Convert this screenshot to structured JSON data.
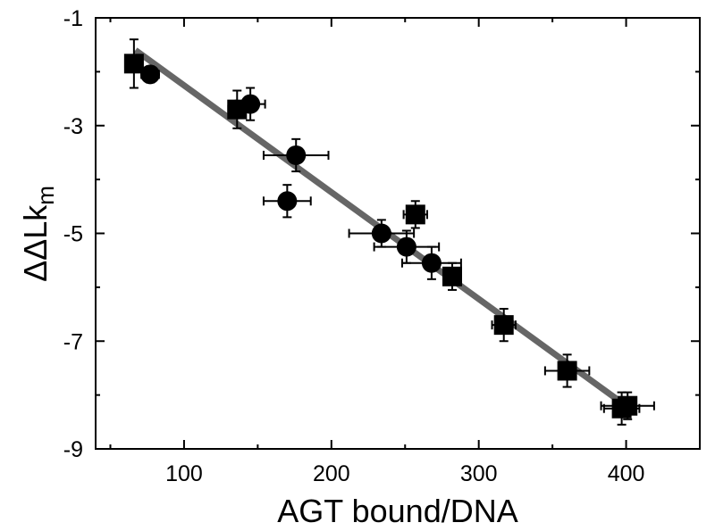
{
  "chart_data": {
    "type": "scatter",
    "title": "",
    "xlabel": "AGT bound/DNA",
    "ylabel_main": "ΔΔLk",
    "ylabel_sub": "m",
    "xlim": [
      40,
      450
    ],
    "ylim": [
      -9,
      -1
    ],
    "x_ticks": [
      100,
      200,
      300,
      400
    ],
    "x_tick_labels": [
      "100",
      "200",
      "300",
      "400"
    ],
    "y_ticks": [
      -1,
      -3,
      -5,
      -7,
      -9
    ],
    "y_tick_labels": [
      "-1",
      "-3",
      "-5",
      "-7",
      "-9"
    ],
    "grid": false,
    "legend": "none",
    "fit_line": {
      "color": "#666666",
      "points": [
        [
          67,
          -1.6
        ],
        [
          405,
          -8.3
        ]
      ]
    },
    "series": [
      {
        "marker": "circle",
        "color": "#000000",
        "points": [
          {
            "x": 77,
            "y": -2.05,
            "xerr": 6,
            "yerr": 0.15
          },
          {
            "x": 145,
            "y": -2.6,
            "xerr": 10,
            "yerr": 0.3
          },
          {
            "x": 176,
            "y": -3.55,
            "xerr": 22,
            "yerr": 0.3
          },
          {
            "x": 170,
            "y": -4.4,
            "xerr": 16,
            "yerr": 0.3
          },
          {
            "x": 234,
            "y": -5.0,
            "xerr": 22,
            "yerr": 0.25
          },
          {
            "x": 251,
            "y": -5.25,
            "xerr": 22,
            "yerr": 0.3
          },
          {
            "x": 268,
            "y": -5.55,
            "xerr": 20,
            "yerr": 0.3
          }
        ]
      },
      {
        "marker": "square",
        "color": "#000000",
        "points": [
          {
            "x": 66,
            "y": -1.85,
            "xerr": 6,
            "yerr": 0.45
          },
          {
            "x": 136,
            "y": -2.7,
            "xerr": 6,
            "yerr": 0.35
          },
          {
            "x": 257,
            "y": -4.65,
            "xerr": 8,
            "yerr": 0.25
          },
          {
            "x": 282,
            "y": -5.8,
            "xerr": 6,
            "yerr": 0.25
          },
          {
            "x": 317,
            "y": -6.7,
            "xerr": 8,
            "yerr": 0.3
          },
          {
            "x": 360,
            "y": -7.55,
            "xerr": 15,
            "yerr": 0.3
          },
          {
            "x": 397,
            "y": -8.25,
            "xerr": 12,
            "yerr": 0.3
          },
          {
            "x": 401,
            "y": -8.2,
            "xerr": 18,
            "yerr": 0.25
          }
        ]
      }
    ]
  }
}
